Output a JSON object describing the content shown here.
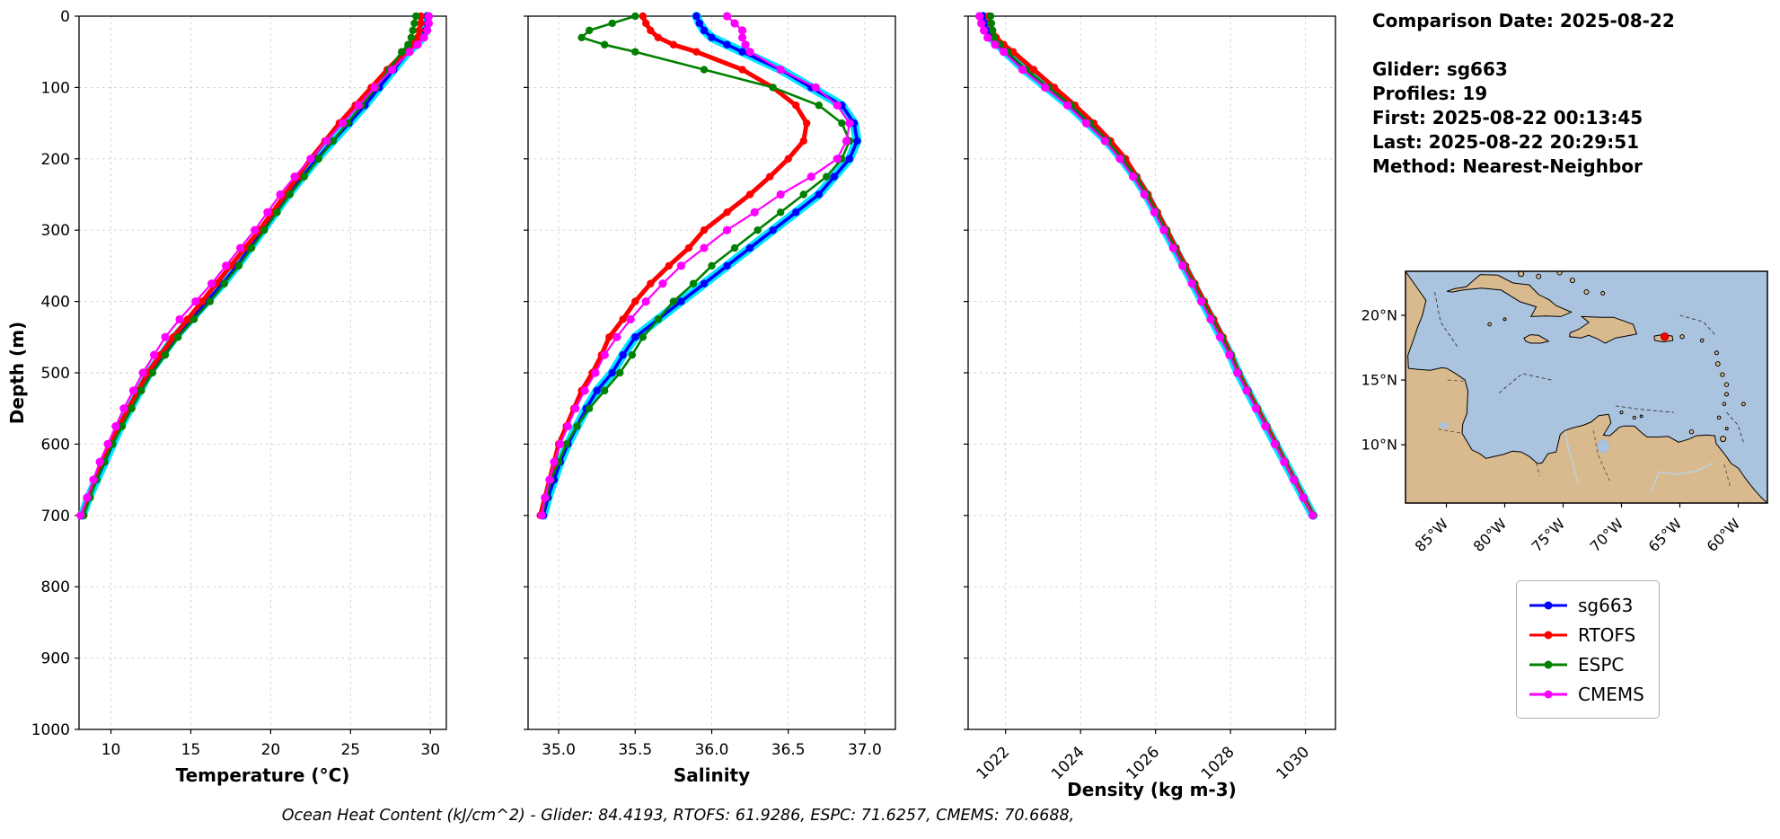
{
  "info_panel": {
    "comparison_date": "Comparison Date: 2025-08-22",
    "glider": "Glider: sg663",
    "profiles": "Profiles: 19",
    "first": "First: 2025-08-22 00:13:45",
    "last": "Last: 2025-08-22 20:29:51",
    "method": "Method: Nearest-Neighbor"
  },
  "legend": {
    "items": [
      {
        "label": "sg663",
        "color": "#0000ff"
      },
      {
        "label": "RTOFS",
        "color": "#ff0000"
      },
      {
        "label": "ESPC",
        "color": "#008000"
      },
      {
        "label": "CMEMS",
        "color": "#ff00ff"
      }
    ]
  },
  "footer_text": "Ocean Heat Content (kJ/cm^2) - Glider: 84.4193,  RTOFS: 61.9286,  ESPC: 71.6257,  CMEMS: 70.6688,",
  "colors": {
    "glider_envelope": "#00e5ff",
    "grid": "#c9c9c9",
    "ocean": "#aac4e0",
    "land": "#d9ba8f",
    "marker_red": "#ff0000"
  },
  "chart_data": [
    {
      "type": "line",
      "title": "",
      "xlabel": "Temperature (°C)",
      "ylabel": "Depth (m)",
      "xlim": [
        8,
        31
      ],
      "ylim": [
        0,
        1000
      ],
      "xticks": [
        10,
        15,
        20,
        25,
        30
      ],
      "xtick_labels": [
        "10",
        "15",
        "20",
        "25",
        "30"
      ],
      "yticks": [
        0,
        100,
        200,
        300,
        400,
        500,
        600,
        700,
        800,
        900,
        1000
      ],
      "grid": true,
      "depths": [
        0,
        10,
        20,
        30,
        40,
        50,
        75,
        100,
        125,
        150,
        175,
        200,
        225,
        250,
        275,
        300,
        325,
        350,
        375,
        400,
        425,
        450,
        475,
        500,
        525,
        550,
        575,
        600,
        625,
        650,
        675,
        700
      ],
      "series": [
        {
          "name": "sg663",
          "color": "#0000ff",
          "values": [
            29.8,
            29.8,
            29.7,
            29.5,
            29.1,
            28.6,
            27.7,
            26.8,
            25.9,
            24.9,
            23.9,
            22.9,
            22.0,
            21.1,
            20.3,
            19.5,
            18.7,
            17.9,
            17.0,
            16.0,
            15.0,
            14.0,
            13.2,
            12.4,
            11.8,
            11.2,
            10.6,
            10.1,
            9.6,
            9.1,
            8.6,
            8.2
          ]
        },
        {
          "name": "RTOFS",
          "color": "#ff0000",
          "values": [
            29.4,
            29.4,
            29.3,
            29.2,
            28.9,
            28.4,
            27.3,
            26.3,
            25.3,
            24.3,
            23.4,
            22.5,
            21.7,
            20.9,
            20.1,
            19.3,
            18.4,
            17.5,
            16.6,
            15.7,
            14.8,
            13.9,
            13.1,
            12.3,
            11.7,
            11.1,
            10.5,
            10.0,
            9.5,
            9.0,
            8.6,
            8.2
          ]
        },
        {
          "name": "ESPC",
          "color": "#008000",
          "values": [
            29.1,
            29.0,
            28.9,
            28.8,
            28.6,
            28.2,
            27.4,
            26.6,
            25.7,
            24.8,
            23.9,
            23.0,
            22.1,
            21.2,
            20.4,
            19.6,
            18.8,
            18.0,
            17.1,
            16.2,
            15.2,
            14.2,
            13.4,
            12.6,
            11.9,
            11.3,
            10.7,
            10.1,
            9.6,
            9.1,
            8.7,
            8.3
          ]
        },
        {
          "name": "CMEMS",
          "color": "#ff00ff",
          "values": [
            29.9,
            29.9,
            29.8,
            29.6,
            29.2,
            28.7,
            27.6,
            26.5,
            25.5,
            24.5,
            23.5,
            22.5,
            21.5,
            20.6,
            19.8,
            19.0,
            18.1,
            17.2,
            16.3,
            15.3,
            14.3,
            13.4,
            12.7,
            12.0,
            11.4,
            10.8,
            10.3,
            9.8,
            9.3,
            8.9,
            8.5,
            8.1
          ]
        }
      ]
    },
    {
      "type": "line",
      "title": "",
      "xlabel": "Salinity",
      "ylabel": "",
      "xlim": [
        34.8,
        37.2
      ],
      "ylim": [
        0,
        1000
      ],
      "xticks": [
        35.0,
        35.5,
        36.0,
        36.5,
        37.0
      ],
      "xtick_labels": [
        "35.0",
        "35.5",
        "36.0",
        "36.5",
        "37.0"
      ],
      "yticks": [
        0,
        100,
        200,
        300,
        400,
        500,
        600,
        700,
        800,
        900,
        1000
      ],
      "grid": true,
      "depths": [
        0,
        10,
        20,
        30,
        40,
        50,
        75,
        100,
        125,
        150,
        175,
        200,
        225,
        250,
        275,
        300,
        325,
        350,
        375,
        400,
        425,
        450,
        475,
        500,
        525,
        550,
        575,
        600,
        625,
        650,
        675,
        700
      ],
      "series": [
        {
          "name": "sg663",
          "color": "#0000ff",
          "values": [
            35.9,
            35.92,
            35.95,
            36.0,
            36.1,
            36.2,
            36.45,
            36.65,
            36.85,
            36.93,
            36.95,
            36.9,
            36.8,
            36.7,
            36.55,
            36.4,
            36.25,
            36.1,
            35.95,
            35.8,
            35.65,
            35.5,
            35.42,
            35.35,
            35.25,
            35.18,
            35.12,
            35.06,
            35.01,
            34.97,
            34.93,
            34.9
          ]
        },
        {
          "name": "RTOFS",
          "color": "#ff0000",
          "values": [
            35.55,
            35.57,
            35.6,
            35.65,
            35.75,
            35.9,
            36.2,
            36.4,
            36.55,
            36.62,
            36.6,
            36.5,
            36.38,
            36.25,
            36.1,
            35.95,
            35.85,
            35.72,
            35.6,
            35.5,
            35.42,
            35.33,
            35.28,
            35.22,
            35.15,
            35.1,
            35.05,
            35.0,
            34.97,
            34.94,
            34.91,
            34.88
          ]
        },
        {
          "name": "ESPC",
          "color": "#008000",
          "values": [
            35.5,
            35.35,
            35.2,
            35.15,
            35.3,
            35.5,
            35.95,
            36.4,
            36.7,
            36.85,
            36.9,
            36.85,
            36.75,
            36.6,
            36.45,
            36.3,
            36.15,
            36.0,
            35.88,
            35.75,
            35.65,
            35.55,
            35.48,
            35.4,
            35.3,
            35.2,
            35.12,
            35.05,
            35.0,
            34.95,
            34.92,
            34.89
          ]
        },
        {
          "name": "CMEMS",
          "color": "#ff00ff",
          "values": [
            36.1,
            36.15,
            36.2,
            36.2,
            36.22,
            36.25,
            36.45,
            36.68,
            36.82,
            36.9,
            36.88,
            36.82,
            36.65,
            36.45,
            36.28,
            36.1,
            35.95,
            35.8,
            35.68,
            35.57,
            35.47,
            35.38,
            35.3,
            35.24,
            35.17,
            35.11,
            35.06,
            35.01,
            34.97,
            34.94,
            34.91,
            34.89
          ]
        }
      ]
    },
    {
      "type": "line",
      "title": "",
      "xlabel": "Density (kg m-3)",
      "ylabel": "",
      "xlim": [
        1021,
        1030.8
      ],
      "ylim": [
        0,
        1000
      ],
      "xticks": [
        1022,
        1024,
        1026,
        1028,
        1030
      ],
      "xtick_labels": [
        "1022",
        "1024",
        "1026",
        "1028",
        "1030"
      ],
      "xtick_rotate": true,
      "yticks": [
        0,
        100,
        200,
        300,
        400,
        500,
        600,
        700,
        800,
        900,
        1000
      ],
      "grid": true,
      "depths": [
        0,
        10,
        20,
        30,
        40,
        50,
        75,
        100,
        125,
        150,
        175,
        200,
        225,
        250,
        275,
        300,
        325,
        350,
        375,
        400,
        425,
        450,
        475,
        500,
        525,
        550,
        575,
        600,
        625,
        650,
        675,
        700
      ],
      "series": [
        {
          "name": "sg663",
          "color": "#0000ff",
          "values": [
            1021.4,
            1021.45,
            1021.5,
            1021.6,
            1021.8,
            1022.0,
            1022.5,
            1023.1,
            1023.7,
            1024.2,
            1024.7,
            1025.1,
            1025.45,
            1025.75,
            1026.0,
            1026.25,
            1026.5,
            1026.75,
            1027.0,
            1027.25,
            1027.5,
            1027.75,
            1028.0,
            1028.2,
            1028.45,
            1028.7,
            1028.95,
            1029.2,
            1029.45,
            1029.7,
            1029.95,
            1030.2
          ]
        },
        {
          "name": "RTOFS",
          "color": "#ff0000",
          "values": [
            1021.55,
            1021.6,
            1021.65,
            1021.75,
            1021.95,
            1022.2,
            1022.75,
            1023.3,
            1023.85,
            1024.35,
            1024.8,
            1025.2,
            1025.5,
            1025.8,
            1026.05,
            1026.3,
            1026.55,
            1026.8,
            1027.05,
            1027.3,
            1027.55,
            1027.8,
            1028.02,
            1028.22,
            1028.47,
            1028.72,
            1028.97,
            1029.22,
            1029.46,
            1029.71,
            1029.96,
            1030.21
          ]
        },
        {
          "name": "ESPC",
          "color": "#008000",
          "values": [
            1021.6,
            1021.62,
            1021.65,
            1021.7,
            1021.85,
            1022.05,
            1022.55,
            1023.15,
            1023.75,
            1024.25,
            1024.72,
            1025.12,
            1025.47,
            1025.77,
            1026.02,
            1026.27,
            1026.52,
            1026.77,
            1027.02,
            1027.27,
            1027.52,
            1027.77,
            1028.02,
            1028.22,
            1028.46,
            1028.71,
            1028.96,
            1029.21,
            1029.46,
            1029.71,
            1029.96,
            1030.22
          ]
        },
        {
          "name": "CMEMS",
          "color": "#ff00ff",
          "values": [
            1021.3,
            1021.35,
            1021.42,
            1021.52,
            1021.72,
            1021.95,
            1022.45,
            1023.05,
            1023.65,
            1024.15,
            1024.65,
            1025.05,
            1025.4,
            1025.7,
            1025.97,
            1026.22,
            1026.47,
            1026.72,
            1026.97,
            1027.22,
            1027.47,
            1027.72,
            1027.97,
            1028.18,
            1028.43,
            1028.68,
            1028.93,
            1029.18,
            1029.43,
            1029.69,
            1029.94,
            1030.19
          ]
        }
      ]
    },
    {
      "type": "map",
      "extent": {
        "lon": [
          -88.5,
          -57.5
        ],
        "lat": [
          5.5,
          23.4
        ]
      },
      "xticks": [
        -85,
        -80,
        -75,
        -70,
        -65,
        -60
      ],
      "xtick_labels": [
        "85°W",
        "80°W",
        "75°W",
        "70°W",
        "65°W",
        "60°W"
      ],
      "yticks": [
        20,
        15,
        10
      ],
      "ytick_labels": [
        "20°N",
        "15°N",
        "10°N"
      ],
      "marker": {
        "lon": -66.3,
        "lat": 18.35,
        "color": "#ff0000"
      }
    }
  ]
}
